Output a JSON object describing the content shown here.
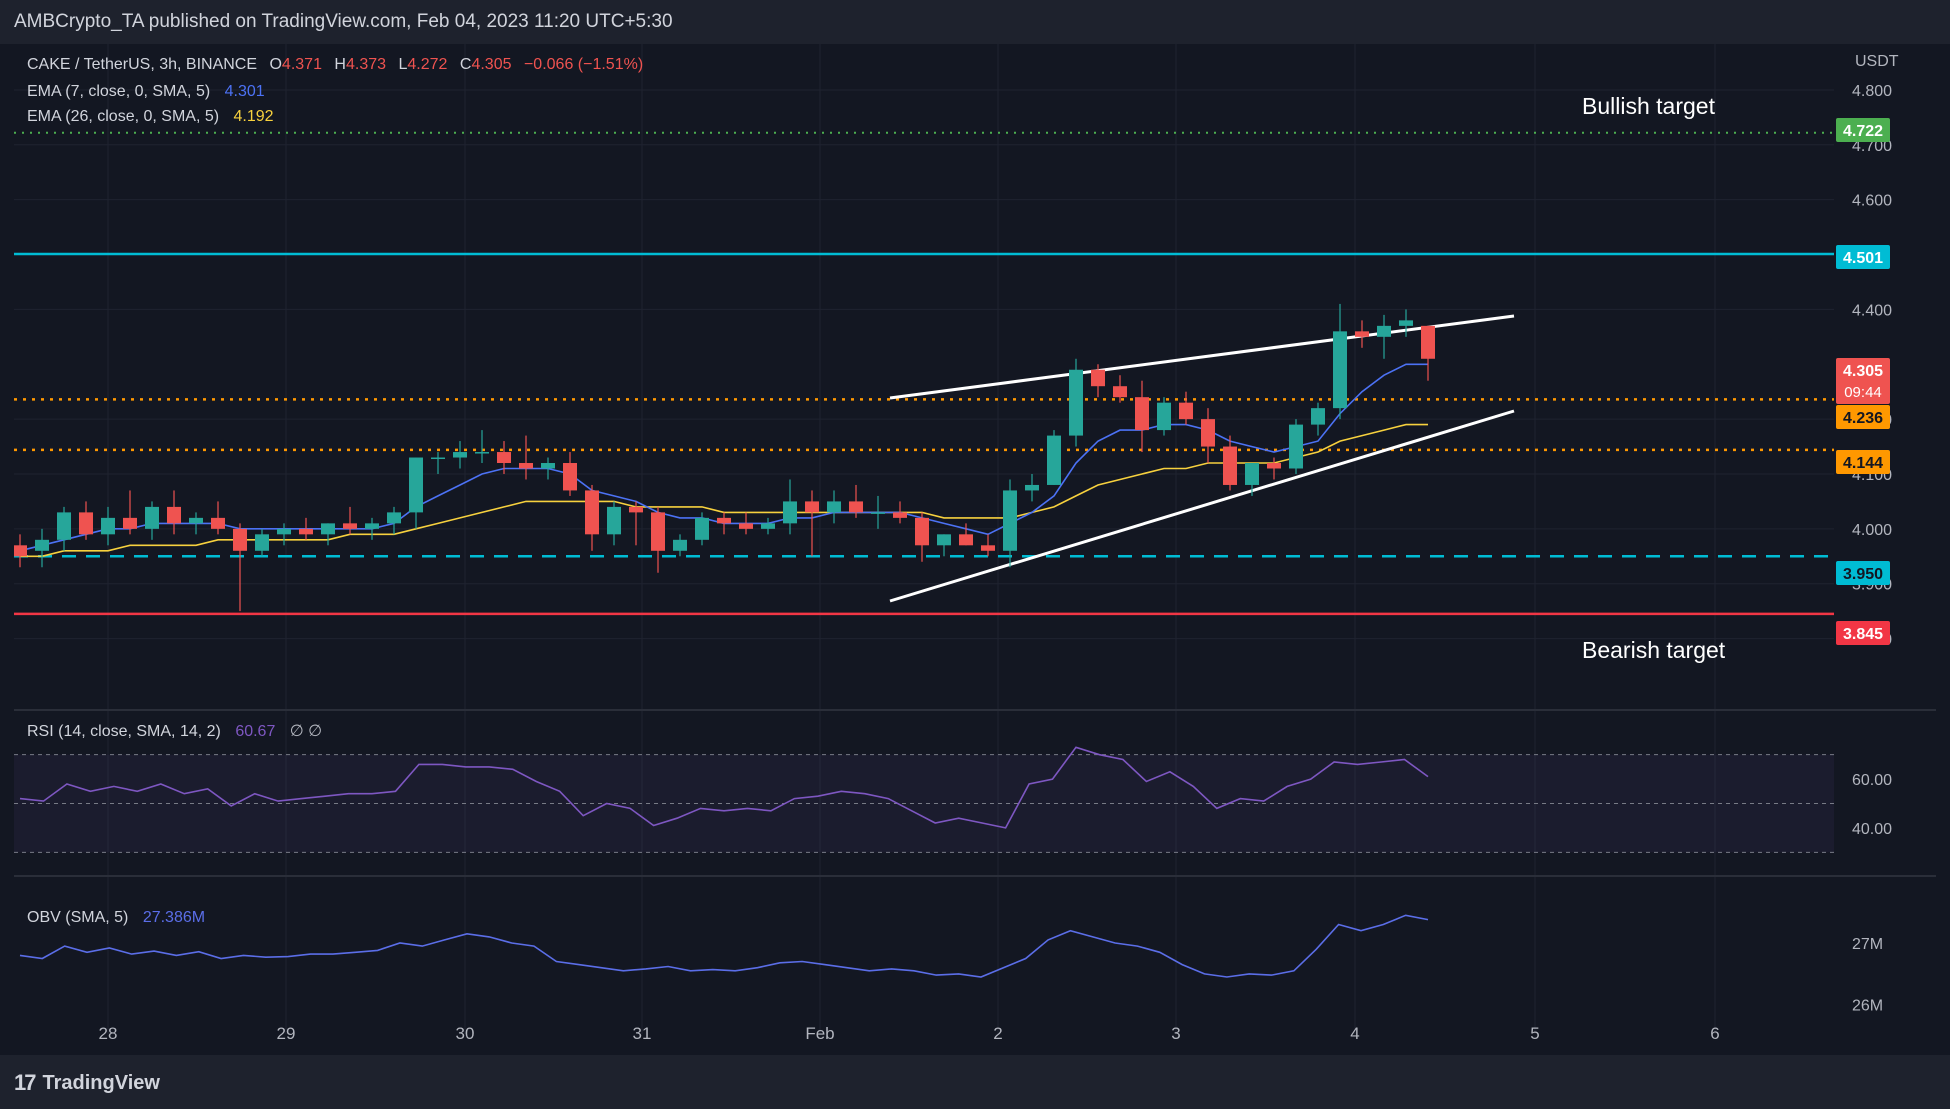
{
  "header": {
    "publisher": "AMBCrypto_TA published on TradingView.com, Feb 04, 2023 11:20 UTC+5:30"
  },
  "footer": {
    "brand": "TradingView"
  },
  "legend": {
    "symbol": "CAKE / TetherUS, 3h, BINANCE",
    "o_label": "O",
    "o_value": "4.371",
    "h_label": "H",
    "h_value": "4.373",
    "l_label": "L",
    "l_value": "4.272",
    "c_label": "C",
    "c_value": "4.305",
    "change": "−0.066 (−1.51%)",
    "ema7_label": "EMA (7, close, 0, SMA, 5)",
    "ema7_value": "4.301",
    "ema26_label": "EMA (26, close, 0, SMA, 5)",
    "ema26_value": "4.192",
    "rsi_label": "RSI (14, close, SMA, 14, 2)",
    "rsi_value": "60.67",
    "rsi_extra": "∅ ∅",
    "obv_label": "OBV (SMA, 5)",
    "obv_value": "27.386M"
  },
  "annotations": {
    "bullish": "Bullish target",
    "bearish": "Bearish target"
  },
  "price_tags": {
    "bullish": "4.722",
    "resistance": "4.501",
    "current": "4.305",
    "countdown": "09:44",
    "support1": "4.236",
    "support2": "4.144",
    "support3": "3.950",
    "bearish": "3.845"
  },
  "colors": {
    "bg": "#131722",
    "up": "#26a69a",
    "down": "#ef5350",
    "ema7": "#4c72f5",
    "ema26": "#f7d13e",
    "cyan": "#00bcd4",
    "red": "#f23645",
    "orange": "#ff9800",
    "green": "#4caf50",
    "white": "#ffffff",
    "rsi": "#7e57c2",
    "obv": "#5b6ee8"
  },
  "chart_data": [
    {
      "type": "candlestick",
      "title": "CAKE / TetherUS, 3h, BINANCE",
      "unit": "USDT",
      "x_ticks": [
        "28",
        "29",
        "30",
        "31",
        "Feb",
        "2",
        "3",
        "4",
        "5",
        "6"
      ],
      "y_ticks": [
        "4.800",
        "4.700",
        "4.600",
        "4.400",
        "4.200",
        "4.100",
        "4.000",
        "3.900",
        "3.800"
      ],
      "ylim": [
        3.75,
        4.84
      ],
      "candles": [
        [
          3.97,
          3.99,
          3.93,
          3.95
        ],
        [
          3.96,
          4.0,
          3.93,
          3.98
        ],
        [
          3.98,
          4.04,
          3.96,
          4.03
        ],
        [
          4.03,
          4.05,
          3.98,
          3.99
        ],
        [
          3.99,
          4.04,
          3.97,
          4.02
        ],
        [
          4.02,
          4.07,
          3.99,
          4.0
        ],
        [
          4.0,
          4.05,
          3.98,
          4.04
        ],
        [
          4.04,
          4.07,
          3.99,
          4.01
        ],
        [
          4.01,
          4.03,
          3.99,
          4.02
        ],
        [
          4.02,
          4.05,
          3.99,
          4.0
        ],
        [
          4.0,
          4.01,
          3.85,
          3.96
        ],
        [
          3.96,
          4.0,
          3.95,
          3.99
        ],
        [
          3.99,
          4.01,
          3.97,
          4.0
        ],
        [
          4.0,
          4.02,
          3.98,
          3.99
        ],
        [
          3.99,
          4.01,
          3.97,
          4.01
        ],
        [
          4.01,
          4.04,
          3.99,
          4.0
        ],
        [
          4.0,
          4.02,
          3.98,
          4.01
        ],
        [
          4.01,
          4.04,
          3.99,
          4.03
        ],
        [
          4.03,
          4.13,
          4.0,
          4.13
        ],
        [
          4.13,
          4.14,
          4.1,
          4.13
        ],
        [
          4.13,
          4.16,
          4.11,
          4.14
        ],
        [
          4.14,
          4.18,
          4.12,
          4.14
        ],
        [
          4.14,
          4.16,
          4.1,
          4.12
        ],
        [
          4.12,
          4.17,
          4.09,
          4.11
        ],
        [
          4.11,
          4.13,
          4.09,
          4.12
        ],
        [
          4.12,
          4.14,
          4.06,
          4.07
        ],
        [
          4.07,
          4.08,
          3.96,
          3.99
        ],
        [
          3.99,
          4.05,
          3.97,
          4.04
        ],
        [
          4.04,
          4.05,
          3.97,
          4.03
        ],
        [
          4.03,
          4.04,
          3.92,
          3.96
        ],
        [
          3.96,
          3.99,
          3.95,
          3.98
        ],
        [
          3.98,
          4.03,
          3.97,
          4.02
        ],
        [
          4.02,
          4.03,
          3.99,
          4.01
        ],
        [
          4.01,
          4.03,
          3.99,
          4.0
        ],
        [
          4.0,
          4.02,
          3.99,
          4.01
        ],
        [
          4.01,
          4.09,
          3.99,
          4.05
        ],
        [
          4.05,
          4.07,
          3.95,
          4.03
        ],
        [
          4.03,
          4.07,
          4.01,
          4.05
        ],
        [
          4.05,
          4.08,
          4.02,
          4.03
        ],
        [
          4.03,
          4.06,
          4.0,
          4.03
        ],
        [
          4.03,
          4.05,
          4.01,
          4.02
        ],
        [
          4.02,
          4.03,
          3.94,
          3.97
        ],
        [
          3.97,
          3.99,
          3.95,
          3.99
        ],
        [
          3.99,
          4.01,
          3.97,
          3.97
        ],
        [
          3.97,
          3.99,
          3.95,
          3.96
        ],
        [
          3.96,
          4.09,
          3.93,
          4.07
        ],
        [
          4.07,
          4.1,
          4.05,
          4.08
        ],
        [
          4.08,
          4.18,
          4.08,
          4.17
        ],
        [
          4.17,
          4.31,
          4.15,
          4.29
        ],
        [
          4.29,
          4.3,
          4.24,
          4.26
        ],
        [
          4.26,
          4.28,
          4.23,
          4.24
        ],
        [
          4.24,
          4.27,
          4.14,
          4.18
        ],
        [
          4.18,
          4.24,
          4.17,
          4.23
        ],
        [
          4.23,
          4.25,
          4.19,
          4.2
        ],
        [
          4.2,
          4.22,
          4.12,
          4.15
        ],
        [
          4.15,
          4.17,
          4.07,
          4.08
        ],
        [
          4.08,
          4.12,
          4.06,
          4.12
        ],
        [
          4.12,
          4.13,
          4.09,
          4.11
        ],
        [
          4.11,
          4.2,
          4.1,
          4.19
        ],
        [
          4.19,
          4.23,
          4.17,
          4.22
        ],
        [
          4.22,
          4.41,
          4.2,
          4.36
        ],
        [
          4.36,
          4.38,
          4.33,
          4.35
        ],
        [
          4.35,
          4.39,
          4.31,
          4.37
        ],
        [
          4.37,
          4.4,
          4.35,
          4.38
        ],
        [
          4.37,
          4.37,
          4.27,
          4.31
        ]
      ],
      "ema7": [
        3.96,
        3.97,
        3.98,
        3.99,
        4.0,
        4.0,
        4.01,
        4.01,
        4.01,
        4.01,
        4.0,
        4.0,
        4.0,
        4.0,
        4.0,
        4.0,
        4.0,
        4.01,
        4.04,
        4.06,
        4.08,
        4.1,
        4.11,
        4.11,
        4.11,
        4.1,
        4.07,
        4.06,
        4.05,
        4.03,
        4.02,
        4.02,
        4.01,
        4.01,
        4.01,
        4.02,
        4.02,
        4.03,
        4.03,
        4.03,
        4.03,
        4.02,
        4.01,
        4.0,
        3.99,
        4.01,
        4.03,
        4.06,
        4.12,
        4.16,
        4.18,
        4.18,
        4.19,
        4.19,
        4.18,
        4.16,
        4.15,
        4.14,
        4.15,
        4.16,
        4.21,
        4.25,
        4.28,
        4.3,
        4.3
      ],
      "ema26": [
        3.95,
        3.95,
        3.96,
        3.96,
        3.96,
        3.97,
        3.97,
        3.97,
        3.97,
        3.98,
        3.98,
        3.98,
        3.98,
        3.98,
        3.98,
        3.99,
        3.99,
        3.99,
        4.0,
        4.01,
        4.02,
        4.03,
        4.04,
        4.05,
        4.05,
        4.05,
        4.05,
        4.05,
        4.04,
        4.04,
        4.04,
        4.04,
        4.03,
        4.03,
        4.03,
        4.03,
        4.03,
        4.03,
        4.03,
        4.03,
        4.03,
        4.03,
        4.02,
        4.02,
        4.02,
        4.02,
        4.03,
        4.04,
        4.06,
        4.08,
        4.09,
        4.1,
        4.11,
        4.11,
        4.12,
        4.12,
        4.12,
        4.12,
        4.13,
        4.14,
        4.16,
        4.17,
        4.18,
        4.19,
        4.19
      ]
    },
    {
      "type": "line",
      "title": "RSI (14, close, SMA, 14, 2)",
      "y_ticks": [
        "60.00",
        "40.00"
      ],
      "ylim": [
        24,
        76
      ],
      "bands": [
        30,
        50,
        70
      ],
      "values": [
        52,
        51,
        58,
        55,
        57,
        55,
        58,
        54,
        56,
        49,
        54,
        51,
        52,
        53,
        54,
        54,
        55,
        66,
        66,
        65,
        65,
        64,
        59,
        55,
        45,
        50,
        48,
        41,
        44,
        48,
        47,
        48,
        47,
        52,
        53,
        55,
        54,
        52,
        47,
        42,
        44,
        42,
        40,
        58,
        60,
        73,
        70,
        68,
        59,
        63,
        57,
        48,
        52,
        51,
        57,
        60,
        67,
        66,
        67,
        68,
        61
      ]
    },
    {
      "type": "line",
      "title": "OBV (SMA, 5)",
      "unit": "M",
      "y_ticks": [
        "27M",
        "26M"
      ],
      "ylim": [
        25.85,
        27.6
      ],
      "values": [
        26.8,
        26.75,
        26.95,
        26.85,
        26.92,
        26.82,
        26.87,
        26.8,
        26.86,
        26.75,
        26.8,
        26.77,
        26.78,
        26.82,
        26.82,
        26.85,
        26.88,
        27.0,
        26.95,
        27.05,
        27.15,
        27.1,
        27.0,
        26.95,
        26.7,
        26.65,
        26.6,
        26.55,
        26.58,
        26.62,
        26.55,
        26.57,
        26.55,
        26.6,
        26.68,
        26.7,
        26.65,
        26.6,
        26.55,
        26.58,
        26.55,
        26.48,
        26.5,
        26.45,
        26.6,
        26.75,
        27.05,
        27.2,
        27.1,
        27.0,
        26.95,
        26.85,
        26.65,
        26.5,
        26.45,
        26.5,
        26.48,
        26.55,
        26.9,
        27.3,
        27.2,
        27.3,
        27.45,
        27.38
      ]
    }
  ]
}
